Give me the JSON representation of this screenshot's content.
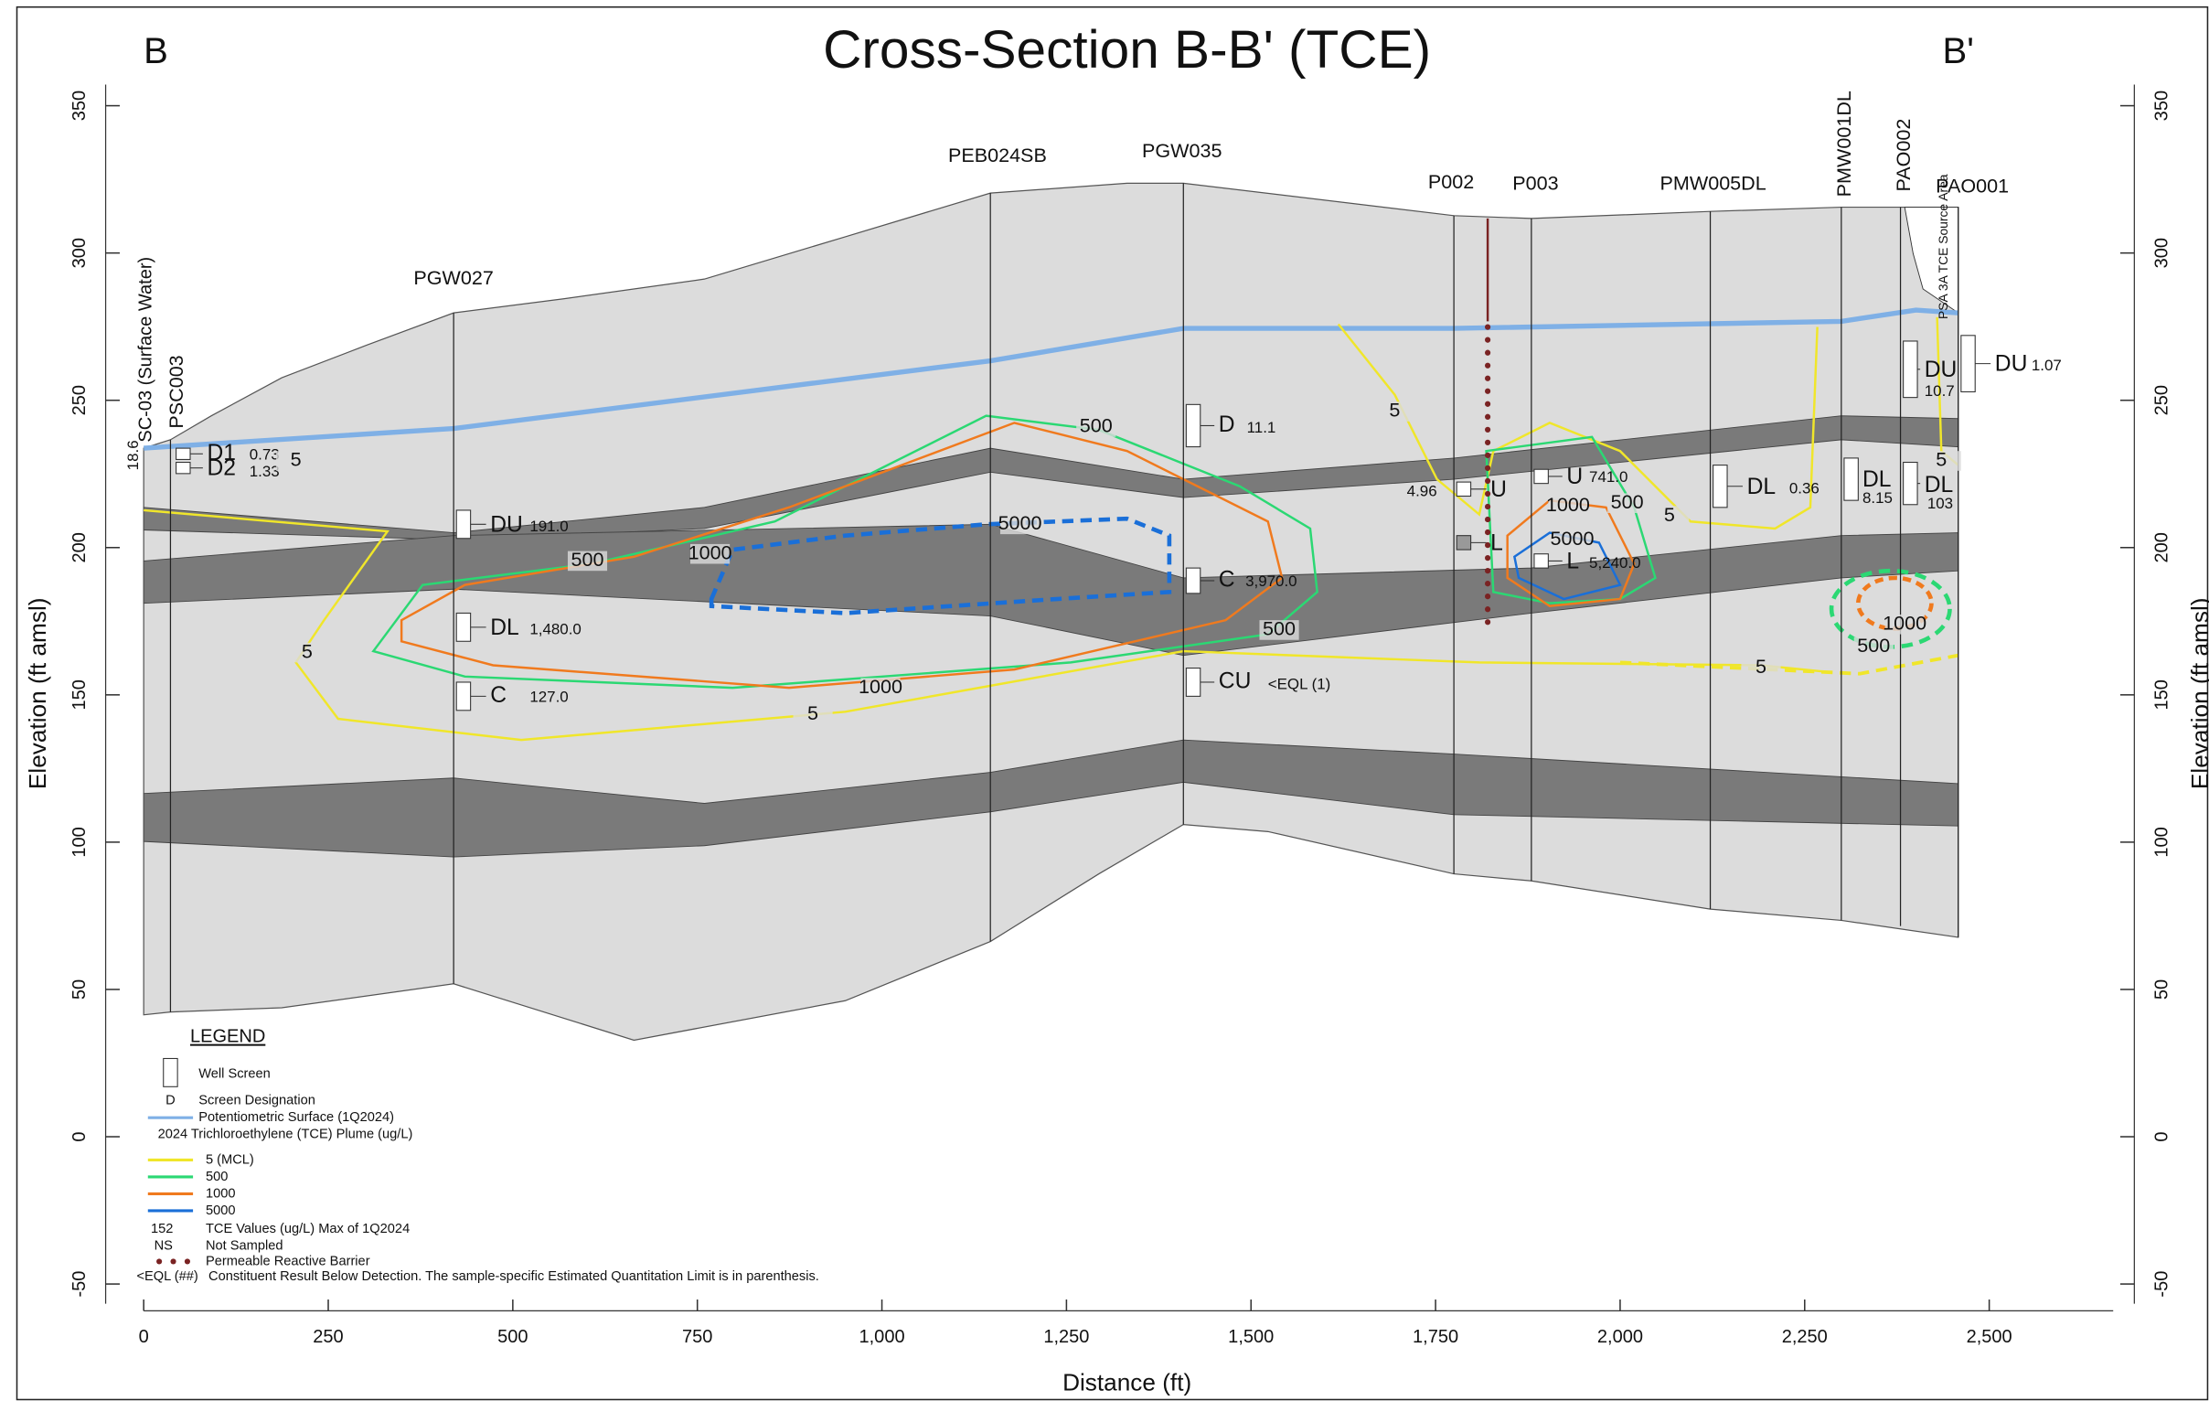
{
  "title": "Cross-Section B-B' (TCE)",
  "section_ends": {
    "start": "B",
    "end": "B'"
  },
  "axes": {
    "x": {
      "label": "Distance (ft)",
      "ticks": [
        0,
        250,
        500,
        750,
        {
          "value": 1000,
          "label": "1,000"
        },
        {
          "value": 1250,
          "label": "1,250"
        },
        {
          "value": 1500,
          "label": "1,500"
        },
        {
          "value": 1750,
          "label": "1,750"
        },
        {
          "value": 2000,
          "label": "2,000"
        },
        {
          "value": 2250,
          "label": "2,250"
        },
        {
          "value": 2500,
          "label": "2,500"
        }
      ]
    },
    "y": {
      "label": "Elevation (ft amsl)",
      "ticks": [
        -50,
        0,
        50,
        100,
        150,
        200,
        250,
        300,
        350
      ]
    }
  },
  "surface_water": {
    "name": "SC-03 (Surface Water)",
    "value": "18.6"
  },
  "source_area": "PSA 3A TCE Source Area",
  "wells": [
    {
      "name": "PSC003",
      "screens": [
        {
          "designation": "D1",
          "value": "0.73"
        },
        {
          "designation": "D2",
          "value": "1.33"
        }
      ]
    },
    {
      "name": "PGW027",
      "screens": [
        {
          "designation": "DU",
          "value": "191.0"
        },
        {
          "designation": "DL",
          "value": "1,480.0"
        },
        {
          "designation": "C",
          "value": "127.0"
        }
      ]
    },
    {
      "name": "PEB024SB",
      "screens": []
    },
    {
      "name": "PGW035",
      "screens": [
        {
          "designation": "D",
          "value": "11.1"
        },
        {
          "designation": "C",
          "value": "3,970.0"
        },
        {
          "designation": "CU",
          "value": "<EQL (1)"
        }
      ]
    },
    {
      "name": "P002",
      "screens": [
        {
          "designation": "U",
          "value": "4.96"
        },
        {
          "designation": "L"
        }
      ]
    },
    {
      "name": "P003",
      "screens": [
        {
          "designation": "U",
          "value": "741.0"
        },
        {
          "designation": "L",
          "value": "5,240.0"
        }
      ]
    },
    {
      "name": "PMW005DL",
      "screens": [
        {
          "designation": "DL",
          "value": "0.36"
        }
      ]
    },
    {
      "name": "PMW001DL",
      "screens": [
        {
          "designation": "DL",
          "value": "8.15"
        }
      ]
    },
    {
      "name": "PAO002",
      "screens": [
        {
          "designation": "DU",
          "value": "10.7"
        },
        {
          "designation": "DL",
          "value": "103"
        }
      ]
    },
    {
      "name": "PAO001",
      "screens": [
        {
          "designation": "DU",
          "value": "1.07"
        }
      ]
    }
  ],
  "contour_labels": [
    "500",
    "5000",
    "1000",
    "500",
    "5",
    "1000",
    "5",
    "500",
    "5",
    "1000",
    "500",
    "5000",
    "5",
    "1000",
    "500",
    "5",
    "5",
    "5"
  ],
  "legend": {
    "title": "LEGEND",
    "items": [
      {
        "label": "Well Screen"
      },
      {
        "key": "D",
        "label": "Screen Designation"
      },
      {
        "label": "Potentiometric Surface (1Q2024)"
      },
      {
        "label": "2024 Trichloroethylene (TCE) Plume (ug/L)"
      },
      {
        "label": "5 (MCL)"
      },
      {
        "label": "500"
      },
      {
        "label": "1000"
      },
      {
        "label": "5000"
      },
      {
        "key": "152",
        "label": "TCE Values (ug/L) Max of 1Q2024"
      },
      {
        "key": "NS",
        "label": "Not Sampled"
      },
      {
        "label": "Permeable Reactive Barrier"
      },
      {
        "key": "<EQL (##)",
        "label": "Constituent Result Below Detection. The sample-specific Estimated Quantitation Limit is in parenthesis."
      }
    ]
  }
}
